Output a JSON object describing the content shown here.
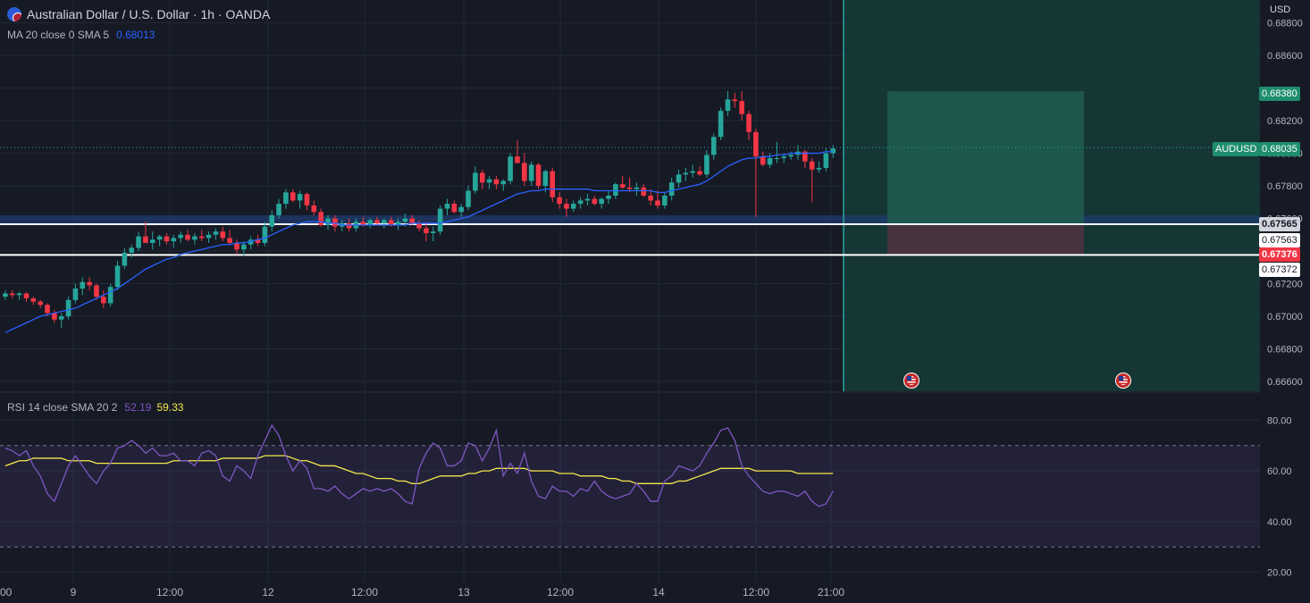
{
  "header": {
    "symbol_title": "Australian Dollar / U.S. Dollar · 1h · OANDA",
    "ma_label": "MA 20 close 0 SMA 5",
    "ma_value": "0.68013",
    "rsi_label": "RSI 14 close SMA 20 2",
    "rsi_value": "52.19",
    "rsi_ma_value": "59.33"
  },
  "price_axis": {
    "currency": "USD",
    "ticks": [
      "0.68800",
      "0.68600",
      "0.68200",
      "0.67800",
      "0.67200",
      "0.67000",
      "0.66800",
      "0.66600"
    ],
    "obscured_ticks": [
      "0.68000",
      "0.67600"
    ]
  },
  "rsi_axis": {
    "ticks": [
      "80.00",
      "60.00",
      "40.00",
      "20.00"
    ]
  },
  "time_axis": {
    "labels": [
      "00",
      "9",
      "12:00",
      "12",
      "12:00",
      "13",
      "12:00",
      "14",
      "12:00",
      "21:00"
    ]
  },
  "badges": {
    "symbol": "AUDUSD",
    "current_price": "0.68035",
    "take_profit": "0.68380",
    "line1_price": "0.67565",
    "line1_alt": "0.67563",
    "stop_loss": "0.67376",
    "line2_alt": "0.67372"
  },
  "colors": {
    "background": "#161a25",
    "grid": "#232836",
    "up_candle": "#26a69a",
    "down_candle": "#f23645",
    "ma_line": "#2962ff",
    "rsi_line": "#7e57c2",
    "rsi_ma_line": "#f5e94b",
    "target_zone": "#1e5c4e",
    "stop_zone": "#4a3340",
    "support_zone": "#1f3b6e"
  },
  "chart_data": {
    "type": "candlestick",
    "price_range": [
      0.6654,
      0.6894
    ],
    "rsi_range": [
      16,
      90
    ],
    "rsi_bands": [
      70,
      30
    ],
    "ohlc": [
      [
        0.6712,
        0.6716,
        0.671,
        0.6714
      ],
      [
        0.6714,
        0.6716,
        0.6711,
        0.6713
      ],
      [
        0.6713,
        0.6715,
        0.671,
        0.6714
      ],
      [
        0.6714,
        0.6715,
        0.6709,
        0.6711
      ],
      [
        0.6711,
        0.6712,
        0.6707,
        0.6709
      ],
      [
        0.6709,
        0.671,
        0.6705,
        0.6707
      ],
      [
        0.6707,
        0.6708,
        0.67,
        0.6702
      ],
      [
        0.6702,
        0.6704,
        0.6696,
        0.6698
      ],
      [
        0.6698,
        0.6702,
        0.6693,
        0.67
      ],
      [
        0.67,
        0.6712,
        0.6698,
        0.671
      ],
      [
        0.671,
        0.672,
        0.6708,
        0.6717
      ],
      [
        0.6717,
        0.6724,
        0.6713,
        0.6721
      ],
      [
        0.6721,
        0.6724,
        0.6716,
        0.6719
      ],
      [
        0.6719,
        0.672,
        0.671,
        0.6712
      ],
      [
        0.6712,
        0.6716,
        0.6705,
        0.6708
      ],
      [
        0.6708,
        0.672,
        0.6706,
        0.6718
      ],
      [
        0.6718,
        0.6734,
        0.6716,
        0.6731
      ],
      [
        0.6731,
        0.6742,
        0.6729,
        0.6739
      ],
      [
        0.6739,
        0.6744,
        0.6736,
        0.6742
      ],
      [
        0.6742,
        0.6752,
        0.674,
        0.6749
      ],
      [
        0.6749,
        0.6758,
        0.6746,
        0.6745
      ],
      [
        0.6745,
        0.6752,
        0.6741,
        0.6747
      ],
      [
        0.6747,
        0.675,
        0.6743,
        0.6749
      ],
      [
        0.6749,
        0.6751,
        0.6744,
        0.6746
      ],
      [
        0.6746,
        0.675,
        0.6742,
        0.6748
      ],
      [
        0.6748,
        0.6752,
        0.6745,
        0.675
      ],
      [
        0.675,
        0.6753,
        0.6746,
        0.6747
      ],
      [
        0.6747,
        0.6751,
        0.6744,
        0.6749
      ],
      [
        0.6749,
        0.6753,
        0.6746,
        0.6748
      ],
      [
        0.6748,
        0.6752,
        0.6745,
        0.675
      ],
      [
        0.675,
        0.6754,
        0.6747,
        0.6752
      ],
      [
        0.6752,
        0.6755,
        0.6746,
        0.6748
      ],
      [
        0.6748,
        0.6753,
        0.6744,
        0.6745
      ],
      [
        0.6745,
        0.6747,
        0.6738,
        0.6741
      ],
      [
        0.6741,
        0.6746,
        0.6737,
        0.6744
      ],
      [
        0.6744,
        0.6749,
        0.6741,
        0.6747
      ],
      [
        0.6747,
        0.675,
        0.6743,
        0.6745
      ],
      [
        0.6745,
        0.6758,
        0.6743,
        0.6755
      ],
      [
        0.6755,
        0.6765,
        0.6752,
        0.6762
      ],
      [
        0.6762,
        0.6772,
        0.676,
        0.6769
      ],
      [
        0.6769,
        0.6778,
        0.6766,
        0.6776
      ],
      [
        0.6776,
        0.6778,
        0.677,
        0.6771
      ],
      [
        0.6771,
        0.6777,
        0.6766,
        0.6775
      ],
      [
        0.6775,
        0.6776,
        0.6765,
        0.6768
      ],
      [
        0.6768,
        0.6771,
        0.6762,
        0.6764
      ],
      [
        0.6764,
        0.6766,
        0.6755,
        0.6756
      ],
      [
        0.6756,
        0.6762,
        0.6753,
        0.676
      ],
      [
        0.676,
        0.6762,
        0.6752,
        0.6755
      ],
      [
        0.6755,
        0.6759,
        0.6752,
        0.6757
      ],
      [
        0.6757,
        0.676,
        0.6752,
        0.6754
      ],
      [
        0.6754,
        0.676,
        0.6752,
        0.6758
      ],
      [
        0.6758,
        0.6761,
        0.6755,
        0.6756
      ],
      [
        0.6756,
        0.676,
        0.6754,
        0.6759
      ],
      [
        0.6759,
        0.6761,
        0.6756,
        0.6757
      ],
      [
        0.6757,
        0.676,
        0.6754,
        0.6759
      ],
      [
        0.6759,
        0.6761,
        0.6755,
        0.6756
      ],
      [
        0.6756,
        0.676,
        0.6753,
        0.6758
      ],
      [
        0.6758,
        0.6763,
        0.6755,
        0.676
      ],
      [
        0.676,
        0.6762,
        0.6756,
        0.6757
      ],
      [
        0.6757,
        0.6759,
        0.6752,
        0.6754
      ],
      [
        0.6754,
        0.6758,
        0.6746,
        0.6751
      ],
      [
        0.6751,
        0.6755,
        0.6746,
        0.6752
      ],
      [
        0.6752,
        0.6768,
        0.675,
        0.6766
      ],
      [
        0.6766,
        0.6772,
        0.6762,
        0.6769
      ],
      [
        0.6769,
        0.6771,
        0.6763,
        0.6764
      ],
      [
        0.6764,
        0.6769,
        0.6761,
        0.6767
      ],
      [
        0.6767,
        0.678,
        0.6765,
        0.6777
      ],
      [
        0.6777,
        0.6792,
        0.6775,
        0.6788
      ],
      [
        0.6788,
        0.679,
        0.6778,
        0.6782
      ],
      [
        0.6782,
        0.6786,
        0.6778,
        0.6784
      ],
      [
        0.6784,
        0.6786,
        0.6778,
        0.6781
      ],
      [
        0.6781,
        0.6784,
        0.6777,
        0.6783
      ],
      [
        0.6783,
        0.68,
        0.6781,
        0.6798
      ],
      [
        0.6798,
        0.6808,
        0.6794,
        0.6794
      ],
      [
        0.6794,
        0.68,
        0.678,
        0.6783
      ],
      [
        0.6783,
        0.6795,
        0.678,
        0.6793
      ],
      [
        0.6793,
        0.6794,
        0.6778,
        0.678
      ],
      [
        0.678,
        0.679,
        0.6776,
        0.6789
      ],
      [
        0.6789,
        0.6791,
        0.677,
        0.6773
      ],
      [
        0.6773,
        0.6776,
        0.6766,
        0.6769
      ],
      [
        0.6769,
        0.6772,
        0.6761,
        0.6766
      ],
      [
        0.6766,
        0.6771,
        0.6764,
        0.6769
      ],
      [
        0.6769,
        0.6773,
        0.6766,
        0.6771
      ],
      [
        0.6771,
        0.6775,
        0.6768,
        0.6772
      ],
      [
        0.6772,
        0.6774,
        0.6768,
        0.6769
      ],
      [
        0.6769,
        0.6773,
        0.6766,
        0.6772
      ],
      [
        0.6772,
        0.6777,
        0.6769,
        0.6774
      ],
      [
        0.6774,
        0.6782,
        0.6772,
        0.6781
      ],
      [
        0.6781,
        0.6786,
        0.6778,
        0.6779
      ],
      [
        0.6779,
        0.6785,
        0.6776,
        0.6778
      ],
      [
        0.6778,
        0.6782,
        0.6774,
        0.6779
      ],
      [
        0.6779,
        0.6781,
        0.6773,
        0.6774
      ],
      [
        0.6774,
        0.6778,
        0.6768,
        0.6771
      ],
      [
        0.6771,
        0.6777,
        0.6766,
        0.6768
      ],
      [
        0.6768,
        0.6776,
        0.6766,
        0.6774
      ],
      [
        0.6774,
        0.6785,
        0.6771,
        0.6782
      ],
      [
        0.6782,
        0.679,
        0.6779,
        0.6787
      ],
      [
        0.6787,
        0.6791,
        0.6783,
        0.6788
      ],
      [
        0.6788,
        0.6793,
        0.6785,
        0.6789
      ],
      [
        0.6789,
        0.6792,
        0.6786,
        0.6787
      ],
      [
        0.6787,
        0.6802,
        0.6785,
        0.6799
      ],
      [
        0.6799,
        0.6812,
        0.6796,
        0.681
      ],
      [
        0.681,
        0.6828,
        0.6808,
        0.6826
      ],
      [
        0.6826,
        0.6838,
        0.6823,
        0.6833
      ],
      [
        0.6833,
        0.6837,
        0.6828,
        0.6832
      ],
      [
        0.6832,
        0.6838,
        0.682,
        0.6824
      ],
      [
        0.6824,
        0.6826,
        0.6808,
        0.6813
      ],
      [
        0.6813,
        0.6815,
        0.6761,
        0.6798
      ],
      [
        0.6798,
        0.6801,
        0.6792,
        0.6793
      ],
      [
        0.6793,
        0.68,
        0.6791,
        0.6797
      ],
      [
        0.6797,
        0.6807,
        0.6794,
        0.6797
      ],
      [
        0.6797,
        0.68,
        0.6794,
        0.6798
      ],
      [
        0.6798,
        0.6801,
        0.6796,
        0.6799
      ],
      [
        0.6799,
        0.6805,
        0.6796,
        0.6801
      ],
      [
        0.6801,
        0.6802,
        0.6791,
        0.6795
      ],
      [
        0.6795,
        0.6797,
        0.677,
        0.679
      ],
      [
        0.679,
        0.6795,
        0.6788,
        0.6791
      ],
      [
        0.6791,
        0.6803,
        0.6789,
        0.68
      ],
      [
        0.68,
        0.6805,
        0.6797,
        0.6803
      ]
    ],
    "ma": [
      0.669,
      0.6692,
      0.6694,
      0.6696,
      0.6698,
      0.67,
      0.6701,
      0.6702,
      0.6703,
      0.6704,
      0.6705,
      0.6707,
      0.6709,
      0.6711,
      0.6713,
      0.6715,
      0.6717,
      0.672,
      0.6723,
      0.6726,
      0.6729,
      0.6731,
      0.6733,
      0.6735,
      0.6736,
      0.6738,
      0.6739,
      0.674,
      0.6741,
      0.6742,
      0.6743,
      0.6744,
      0.6744,
      0.6745,
      0.6745,
      0.6746,
      0.6747,
      0.6748,
      0.675,
      0.6752,
      0.6754,
      0.6756,
      0.6757,
      0.6758,
      0.6758,
      0.6758,
      0.6757,
      0.6757,
      0.6756,
      0.6756,
      0.6756,
      0.6756,
      0.6756,
      0.6756,
      0.6756,
      0.6756,
      0.6756,
      0.6756,
      0.6757,
      0.6757,
      0.6757,
      0.6757,
      0.6757,
      0.6758,
      0.6759,
      0.676,
      0.6761,
      0.6763,
      0.6765,
      0.6767,
      0.6769,
      0.6771,
      0.6773,
      0.6775,
      0.6776,
      0.6777,
      0.6777,
      0.6778,
      0.6778,
      0.6778,
      0.6778,
      0.6778,
      0.6778,
      0.6778,
      0.6777,
      0.6777,
      0.6777,
      0.6777,
      0.6777,
      0.6777,
      0.6777,
      0.6777,
      0.6777,
      0.6776,
      0.6776,
      0.6777,
      0.6778,
      0.6779,
      0.678,
      0.6781,
      0.6783,
      0.6786,
      0.6789,
      0.6792,
      0.6794,
      0.6796,
      0.6797,
      0.6797,
      0.6798,
      0.6798,
      0.6799,
      0.6799,
      0.68,
      0.68,
      0.68,
      0.68,
      0.68,
      0.6801,
      0.6801
    ],
    "rsi": [
      69,
      68,
      66,
      68,
      62,
      58,
      51,
      48,
      55,
      62,
      66,
      62,
      58,
      55,
      60,
      63,
      69,
      70,
      72,
      70,
      67,
      69,
      66,
      66,
      67,
      64,
      64,
      62,
      67,
      68,
      66,
      58,
      56,
      62,
      60,
      57,
      66,
      72,
      78,
      74,
      66,
      60,
      64,
      61,
      53,
      53,
      52,
      54,
      51,
      49,
      51,
      53,
      52,
      53,
      52,
      53,
      51,
      48,
      47,
      61,
      67,
      71,
      69,
      62,
      62,
      64,
      71,
      70,
      64,
      69,
      76,
      58,
      63,
      59,
      67,
      56,
      50,
      49,
      54,
      52,
      52,
      50,
      53,
      52,
      56,
      52,
      50,
      49,
      50,
      51,
      55,
      52,
      48,
      48,
      56,
      58,
      62,
      61,
      60,
      62,
      67,
      71,
      76,
      77,
      72,
      62,
      58,
      55,
      52,
      51,
      52,
      52,
      51,
      50,
      52,
      48,
      46,
      47,
      52
    ],
    "rsi_ma": [
      62,
      63,
      64,
      64,
      65,
      65,
      65,
      65,
      65,
      64,
      64,
      64,
      64,
      63,
      63,
      63,
      63,
      63,
      63,
      63,
      63,
      63,
      63,
      63,
      64,
      64,
      64,
      64,
      64,
      64,
      64,
      65,
      65,
      65,
      65,
      65,
      65,
      66,
      66,
      66,
      66,
      65,
      64,
      64,
      63,
      62,
      62,
      62,
      61,
      60,
      59,
      59,
      58,
      57,
      57,
      57,
      56,
      56,
      55,
      55,
      56,
      57,
      58,
      58,
      58,
      58,
      59,
      59,
      60,
      60,
      61,
      61,
      61,
      61,
      61,
      60,
      60,
      60,
      60,
      59,
      59,
      59,
      58,
      58,
      58,
      58,
      57,
      57,
      56,
      56,
      55,
      55,
      55,
      55,
      55,
      55,
      56,
      56,
      57,
      58,
      59,
      60,
      61,
      61,
      61,
      61,
      61,
      60,
      60,
      60,
      60,
      60,
      60,
      59,
      59,
      59,
      59,
      59,
      59
    ]
  }
}
